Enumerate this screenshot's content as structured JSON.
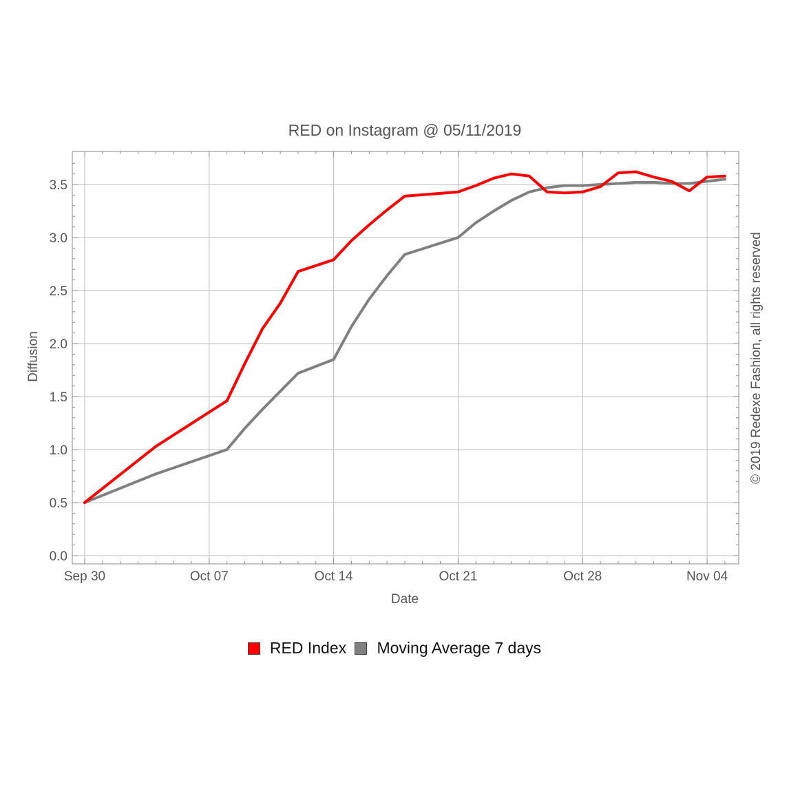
{
  "chart_data": {
    "type": "line",
    "title": "RED on Instagram @ 05/11/2019",
    "xlabel": "Date",
    "ylabel": "Diffusion",
    "side_note": "© 2019 Redexe Fashion, all rights reserved",
    "x_ticks": [
      "Sep 30",
      "Oct 07",
      "Oct 14",
      "Oct 21",
      "Oct 28",
      "Nov 04"
    ],
    "x_tick_dates": [
      "2019-09-30",
      "2019-10-07",
      "2019-10-14",
      "2019-10-21",
      "2019-10-28",
      "2019-11-04"
    ],
    "xlim": [
      "2019-09-30",
      "2019-11-05"
    ],
    "y_ticks": [
      "0.0",
      "0.5",
      "1.0",
      "1.5",
      "2.0",
      "2.5",
      "3.0",
      "3.5"
    ],
    "ylim": [
      -0.08,
      3.8
    ],
    "grid": true,
    "legend_position": "bottom",
    "series": [
      {
        "name": "RED Index",
        "color": "#ff0000",
        "x": [
          "2019-09-30",
          "2019-10-04",
          "2019-10-08",
          "2019-10-09",
          "2019-10-10",
          "2019-10-11",
          "2019-10-12",
          "2019-10-14",
          "2019-10-15",
          "2019-10-16",
          "2019-10-17",
          "2019-10-18",
          "2019-10-21",
          "2019-10-22",
          "2019-10-23",
          "2019-10-24",
          "2019-10-25",
          "2019-10-26",
          "2019-10-27",
          "2019-10-28",
          "2019-10-29",
          "2019-10-30",
          "2019-10-31",
          "2019-11-01",
          "2019-11-02",
          "2019-11-03",
          "2019-11-04",
          "2019-11-05"
        ],
        "y": [
          0.5,
          1.03,
          1.46,
          1.81,
          2.14,
          2.38,
          2.68,
          2.79,
          2.97,
          3.12,
          3.26,
          3.39,
          3.43,
          3.49,
          3.56,
          3.6,
          3.58,
          3.43,
          3.42,
          3.43,
          3.48,
          3.61,
          3.62,
          3.57,
          3.53,
          3.44,
          3.57,
          3.58
        ]
      },
      {
        "name": "Moving Average 7 days",
        "color": "#808080",
        "x": [
          "2019-09-30",
          "2019-10-04",
          "2019-10-08",
          "2019-10-09",
          "2019-10-10",
          "2019-10-11",
          "2019-10-12",
          "2019-10-14",
          "2019-10-15",
          "2019-10-16",
          "2019-10-17",
          "2019-10-18",
          "2019-10-21",
          "2019-10-22",
          "2019-10-23",
          "2019-10-24",
          "2019-10-25",
          "2019-10-26",
          "2019-10-27",
          "2019-10-28",
          "2019-10-29",
          "2019-10-30",
          "2019-10-31",
          "2019-11-01",
          "2019-11-02",
          "2019-11-03",
          "2019-11-04",
          "2019-11-05"
        ],
        "y": [
          0.5,
          0.77,
          1.0,
          1.2,
          1.38,
          1.55,
          1.72,
          1.85,
          2.16,
          2.42,
          2.64,
          2.84,
          3.0,
          3.14,
          3.25,
          3.35,
          3.43,
          3.47,
          3.49,
          3.49,
          3.5,
          3.51,
          3.52,
          3.52,
          3.51,
          3.51,
          3.53,
          3.55
        ]
      }
    ]
  }
}
